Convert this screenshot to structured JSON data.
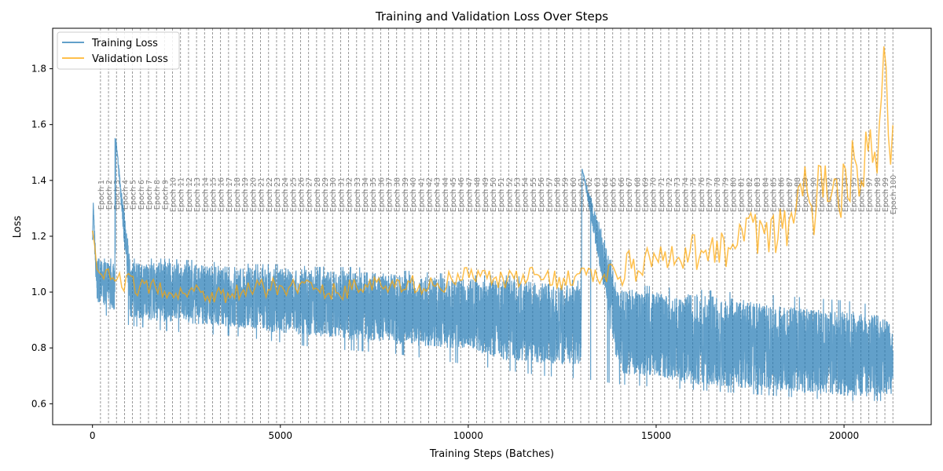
{
  "chart_data": {
    "type": "line",
    "title": "Training and Validation Loss Over Steps",
    "xlabel": "Training Steps (Batches)",
    "ylabel": "Loss",
    "xlim": [
      -1060,
      22320
    ],
    "ylim": [
      0.525,
      1.945
    ],
    "x_ticks": [
      0,
      5000,
      10000,
      15000,
      20000
    ],
    "x_tick_labels": [
      "0",
      "5000",
      "10000",
      "15000",
      "20000"
    ],
    "y_ticks": [
      0.6,
      0.8,
      1.0,
      1.2,
      1.4,
      1.6,
      1.8
    ],
    "y_tick_labels": [
      "0.6",
      "0.8",
      "1.0",
      "1.2",
      "1.4",
      "1.6",
      "1.8"
    ],
    "grid": false,
    "legend_position": "top-left",
    "steps_per_epoch": 213,
    "epoch_count": 100,
    "epoch_label_prefix": "Epoch",
    "series": [
      {
        "name": "Training Loss",
        "color": "#1f77b4",
        "x": [
          0,
          20,
          100,
          300,
          600,
          620,
          1000,
          2000,
          3000,
          4000,
          5000,
          6000,
          7000,
          8000,
          9000,
          10000,
          11000,
          12000,
          13000,
          13030,
          14000,
          15000,
          16000,
          17000,
          18000,
          19000,
          20000,
          21000,
          21300
        ],
        "center": [
          1.15,
          1.32,
          1.04,
          1.03,
          1.02,
          1.55,
          1.01,
          1.0,
          0.99,
          0.98,
          0.97,
          0.96,
          0.95,
          0.94,
          0.93,
          0.92,
          0.9,
          0.89,
          0.88,
          1.44,
          0.86,
          0.85,
          0.83,
          0.82,
          0.8,
          0.79,
          0.78,
          0.77,
          0.76
        ],
        "band_low": [
          1.0,
          1.0,
          0.95,
          0.92,
          0.9,
          0.9,
          0.88,
          0.86,
          0.85,
          0.84,
          0.82,
          0.8,
          0.79,
          0.78,
          0.76,
          0.74,
          0.72,
          0.7,
          0.69,
          0.69,
          0.67,
          0.66,
          0.65,
          0.64,
          0.63,
          0.62,
          0.61,
          0.61,
          0.62
        ],
        "band_high": [
          1.1,
          1.32,
          1.12,
          1.12,
          1.12,
          1.55,
          1.12,
          1.12,
          1.11,
          1.1,
          1.1,
          1.09,
          1.09,
          1.08,
          1.07,
          1.06,
          1.06,
          1.05,
          1.04,
          1.44,
          1.03,
          1.02,
          1.01,
          1.0,
          0.99,
          0.98,
          0.97,
          0.95,
          0.9
        ]
      },
      {
        "name": "Validation Loss",
        "color": "#ffa500",
        "x": [
          0,
          100,
          200,
          400,
          600,
          800,
          1000,
          1200,
          1500,
          2000,
          2500,
          3000,
          3500,
          4000,
          4500,
          5000,
          5500,
          6000,
          6500,
          7000,
          7500,
          8000,
          8500,
          9000,
          9500,
          10000,
          10500,
          11000,
          11500,
          12000,
          12500,
          13000,
          13500,
          14000,
          14500,
          15000,
          15500,
          16000,
          16500,
          17000,
          17500,
          18000,
          18500,
          18800,
          19000,
          19200,
          19400,
          19600,
          19800,
          20000,
          20200,
          20400,
          20600,
          20800,
          21000,
          21100,
          21200,
          21300
        ],
        "values": [
          1.22,
          1.09,
          1.05,
          1.05,
          1.05,
          1.04,
          1.03,
          1.02,
          1.01,
          1.01,
          1.0,
          1.0,
          0.99,
          1.0,
          1.01,
          1.02,
          1.03,
          1.0,
          1.0,
          1.02,
          1.03,
          1.01,
          1.03,
          1.02,
          1.04,
          1.06,
          1.05,
          1.04,
          1.05,
          1.06,
          1.04,
          1.07,
          1.05,
          1.08,
          1.1,
          1.12,
          1.1,
          1.14,
          1.17,
          1.15,
          1.22,
          1.18,
          1.24,
          1.3,
          1.38,
          1.28,
          1.45,
          1.35,
          1.32,
          1.36,
          1.45,
          1.38,
          1.5,
          1.48,
          1.6,
          1.88,
          1.38,
          1.5
        ],
        "jitter": 0.035
      }
    ],
    "legend": [
      {
        "name": "Training Loss",
        "color": "#1f77b4"
      },
      {
        "name": "Validation Loss",
        "color": "#ffa500"
      }
    ]
  }
}
